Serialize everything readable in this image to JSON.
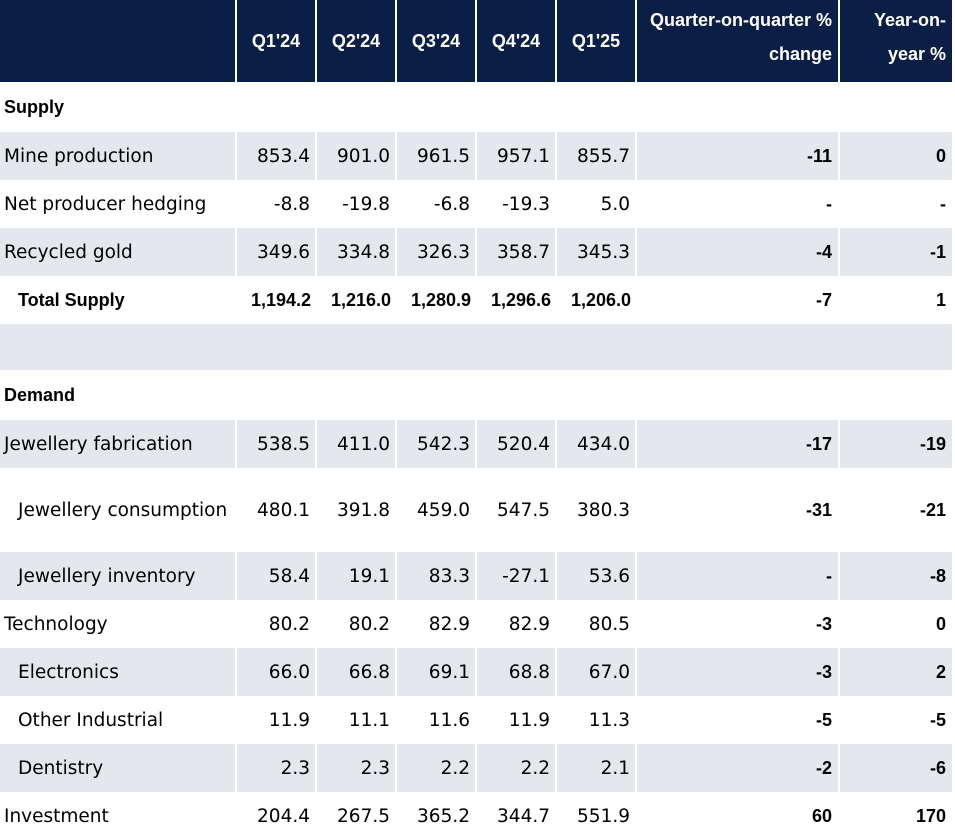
{
  "table": {
    "headers": {
      "label": "",
      "quarters": [
        "Q1'24",
        "Q2'24",
        "Q3'24",
        "Q4'24",
        "Q1'25"
      ],
      "qoq": "Quarter-on-quarter % change",
      "yoy": "Year-on-year %"
    },
    "sections": {
      "supply": "Supply",
      "demand": "Demand"
    },
    "rows": [
      {
        "label": "Mine production",
        "values": [
          "853.4",
          "901.0",
          "961.5",
          "957.1",
          "855.7"
        ],
        "qoq": "-11",
        "yoy": "0"
      },
      {
        "label": "Net producer hedging",
        "values": [
          "-8.8",
          "-19.8",
          "-6.8",
          "-19.3",
          "5.0"
        ],
        "qoq": "-",
        "yoy": "-"
      },
      {
        "label": "Recycled gold",
        "values": [
          "349.6",
          "334.8",
          "326.3",
          "358.7",
          "345.3"
        ],
        "qoq": "-4",
        "yoy": "-1"
      },
      {
        "label": "Total Supply",
        "values": [
          "1,194.2",
          "1,216.0",
          "1,280.9",
          "1,296.6",
          "1,206.0"
        ],
        "qoq": "-7",
        "yoy": "1"
      },
      {
        "label": "Jewellery fabrication",
        "values": [
          "538.5",
          "411.0",
          "542.3",
          "520.4",
          "434.0"
        ],
        "qoq": "-17",
        "yoy": "-19"
      },
      {
        "label": "Jewellery consumption",
        "values": [
          "480.1",
          "391.8",
          "459.0",
          "547.5",
          "380.3"
        ],
        "qoq": "-31",
        "yoy": "-21"
      },
      {
        "label": "Jewellery inventory",
        "values": [
          "58.4",
          "19.1",
          "83.3",
          "-27.1",
          "53.6"
        ],
        "qoq": "-",
        "yoy": "-8"
      },
      {
        "label": "Technology",
        "values": [
          "80.2",
          "80.2",
          "82.9",
          "82.9",
          "80.5"
        ],
        "qoq": "-3",
        "yoy": "0"
      },
      {
        "label": "Electronics",
        "values": [
          "66.0",
          "66.8",
          "69.1",
          "68.8",
          "67.0"
        ],
        "qoq": "-3",
        "yoy": "2"
      },
      {
        "label": "Other Industrial",
        "values": [
          "11.9",
          "11.1",
          "11.6",
          "11.9",
          "11.3"
        ],
        "qoq": "-5",
        "yoy": "-5"
      },
      {
        "label": "Dentistry",
        "values": [
          "2.3",
          "2.3",
          "2.2",
          "2.2",
          "2.1"
        ],
        "qoq": "-2",
        "yoy": "-6"
      },
      {
        "label": "Investment",
        "values": [
          "204.4",
          "267.5",
          "365.2",
          "344.7",
          "551.9"
        ],
        "qoq": "60",
        "yoy": "170"
      }
    ]
  }
}
